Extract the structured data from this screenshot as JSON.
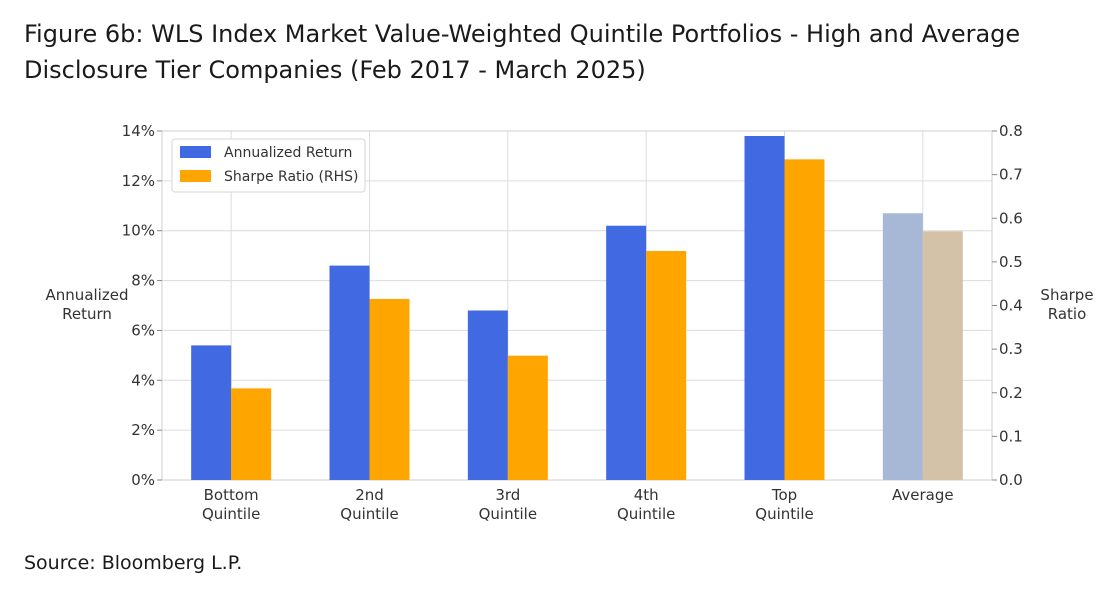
{
  "page": {
    "title_line1": "Figure 6b: WLS Index Market Value-Weighted Quintile Portfolios - High and Average",
    "title_line2": "Disclosure Tier Companies (Feb 2017 - March 2025)",
    "source": "Source: Bloomberg L.P."
  },
  "chart_data": {
    "type": "bar",
    "categories": [
      [
        "Bottom",
        "Quintile"
      ],
      [
        "2nd",
        "Quintile"
      ],
      [
        "3rd",
        "Quintile"
      ],
      [
        "4th",
        "Quintile"
      ],
      [
        "Top",
        "Quintile"
      ],
      [
        "Average"
      ]
    ],
    "series": [
      {
        "name": "Annualized Return",
        "axis": "left",
        "color": "#4169E1",
        "values": [
          5.4,
          8.6,
          6.8,
          10.2,
          13.8,
          10.7
        ],
        "unit": "%"
      },
      {
        "name": "Sharpe Ratio (RHS)",
        "axis": "right",
        "color": "#FFA500",
        "values": [
          0.21,
          0.415,
          0.285,
          0.525,
          0.735,
          0.57
        ]
      }
    ],
    "highlight_colors": {
      "Average": [
        "#A7B8D6",
        "#D4C2A8"
      ]
    },
    "ylabel_left": [
      "Annualized",
      "Return"
    ],
    "ylabel_right": [
      "Sharpe",
      "Ratio"
    ],
    "ylim_left": [
      0,
      14
    ],
    "ylim_right": [
      0,
      0.8
    ],
    "yticks_left": [
      "0%",
      "2%",
      "4%",
      "6%",
      "8%",
      "10%",
      "12%",
      "14%"
    ],
    "yticks_right": [
      "0.0",
      "0.1",
      "0.2",
      "0.3",
      "0.4",
      "0.5",
      "0.6",
      "0.7",
      "0.8"
    ],
    "grid": true,
    "legend_position": "top-left"
  }
}
